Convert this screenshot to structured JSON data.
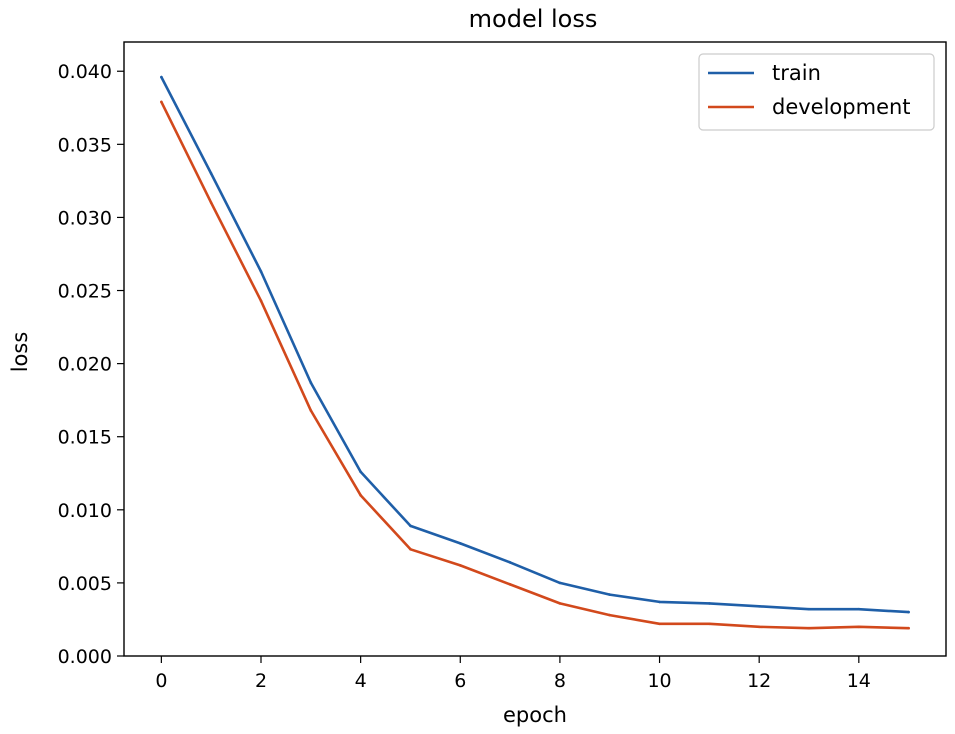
{
  "chart_data": {
    "type": "line",
    "title": "model loss",
    "xlabel": "epoch",
    "ylabel": "loss",
    "xlim": [
      -0.75,
      15.75
    ],
    "ylim": [
      0,
      0.042
    ],
    "xticks": [
      "0",
      "2",
      "4",
      "6",
      "8",
      "10",
      "12",
      "14"
    ],
    "yticks": [
      "0.000",
      "0.005",
      "0.010",
      "0.015",
      "0.020",
      "0.025",
      "0.030",
      "0.035",
      "0.040"
    ],
    "grid": false,
    "legend_position": "top-right",
    "x": [
      0,
      1,
      2,
      3,
      4,
      5,
      6,
      7,
      8,
      9,
      10,
      11,
      12,
      13,
      14,
      15
    ],
    "series": [
      {
        "name": "train",
        "color": "#1f5fa8",
        "values": [
          0.0396,
          0.033,
          0.0263,
          0.0187,
          0.0126,
          0.0089,
          0.0077,
          0.0064,
          0.005,
          0.0042,
          0.0037,
          0.0036,
          0.0034,
          0.0032,
          0.0032,
          0.003
        ]
      },
      {
        "name": "development",
        "color": "#d2491c",
        "values": [
          0.0379,
          0.031,
          0.0243,
          0.0168,
          0.011,
          0.0073,
          0.0062,
          0.0049,
          0.0036,
          0.0028,
          0.0022,
          0.0022,
          0.002,
          0.0019,
          0.002,
          0.0019
        ]
      }
    ]
  }
}
